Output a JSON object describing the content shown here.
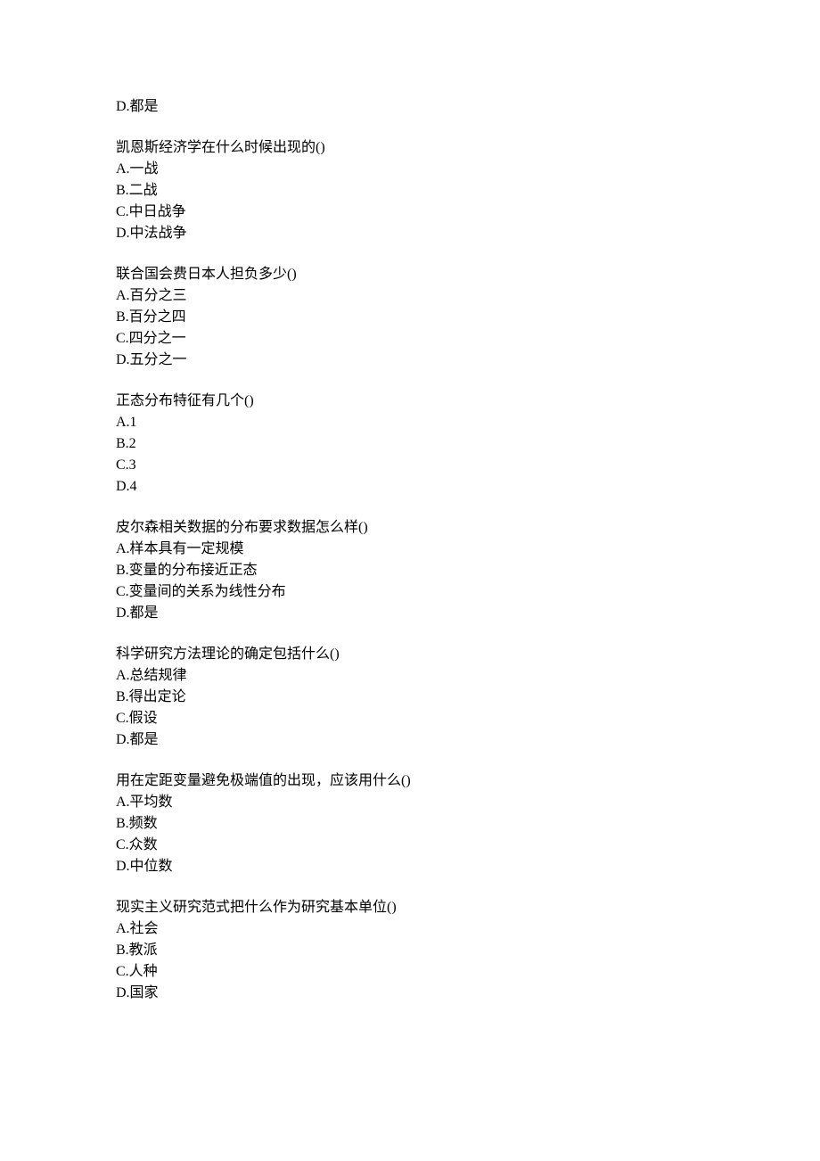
{
  "orphan_option": "D.都是",
  "questions": [
    {
      "stem": "凯恩斯经济学在什么时候出现的()",
      "options": [
        "A.一战",
        "B.二战",
        "C.中日战争",
        "D.中法战争"
      ]
    },
    {
      "stem": "联合国会费日本人担负多少()",
      "options": [
        "A.百分之三",
        "B.百分之四",
        "C.四分之一",
        "D.五分之一"
      ]
    },
    {
      "stem": "正态分布特征有几个()",
      "options": [
        "A.1",
        "B.2",
        "C.3",
        "D.4"
      ]
    },
    {
      "stem": "皮尔森相关数据的分布要求数据怎么样()",
      "options": [
        "A.样本具有一定规模",
        "B.变量的分布接近正态",
        "C.变量间的关系为线性分布",
        "D.都是"
      ]
    },
    {
      "stem": "科学研究方法理论的确定包括什么()",
      "options": [
        "A.总结规律",
        "B.得出定论",
        "C.假设",
        "D.都是"
      ]
    },
    {
      "stem": "用在定距变量避免极端值的出现，应该用什么()",
      "options": [
        "A.平均数",
        "B.频数",
        "C.众数",
        "D.中位数"
      ]
    },
    {
      "stem": "现实主义研究范式把什么作为研究基本单位()",
      "options": [
        "A.社会",
        "B.教派",
        "C.人种",
        "D.国家"
      ]
    }
  ]
}
